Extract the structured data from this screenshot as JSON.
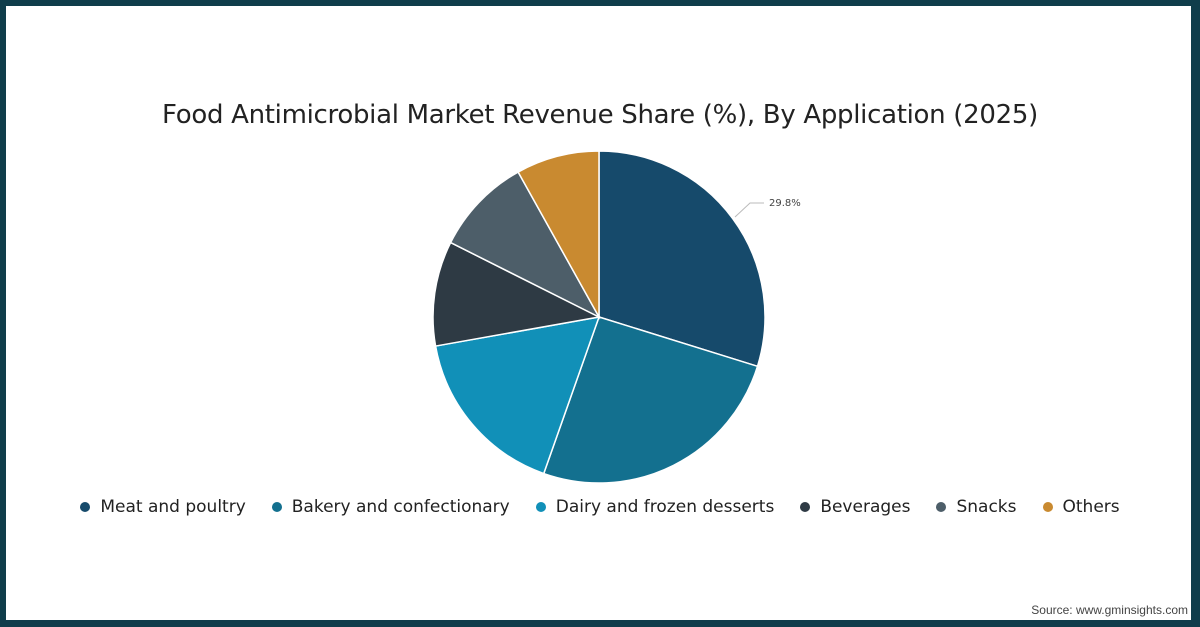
{
  "chart_data": {
    "type": "pie",
    "title": "Food Antimicrobial Market Revenue Share (%), By Application (2025)",
    "categories": [
      "Meat and poultry",
      "Bakery and confectionary",
      "Dairy and frozen desserts",
      "Beverages",
      "Snacks",
      "Others"
    ],
    "values": [
      29.8,
      25.6,
      16.8,
      10.2,
      9.5,
      8.1
    ],
    "colors": [
      "#164a6b",
      "#13708f",
      "#1190b8",
      "#2e3a44",
      "#4d5e69",
      "#c98a30"
    ],
    "data_labels": [
      {
        "category": "Meat and poultry",
        "text": "29.8%"
      }
    ],
    "legend_position": "bottom",
    "start_angle_deg": 0,
    "direction": "clockwise"
  },
  "legend": [
    {
      "label": "Meat and poultry",
      "color": "#164a6b"
    },
    {
      "label": "Bakery and confectionary",
      "color": "#13708f"
    },
    {
      "label": "Dairy and frozen desserts",
      "color": "#1190b8"
    },
    {
      "label": "Beverages",
      "color": "#2e3a44"
    },
    {
      "label": "Snacks",
      "color": "#4d5e69"
    },
    {
      "label": "Others",
      "color": "#c98a30"
    }
  ],
  "source": "Source: www.gminsights.com",
  "annotation": "29.8%"
}
